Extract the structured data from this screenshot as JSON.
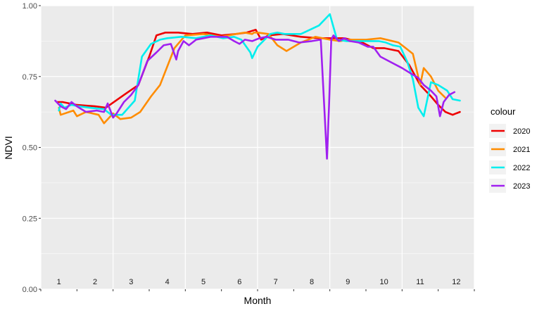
{
  "chart_data": {
    "type": "line",
    "xlabel": "Month",
    "ylabel": "NDVI",
    "ylim": [
      0,
      1
    ],
    "yticks": [
      "0.00",
      "0.25",
      "0.50",
      "0.75",
      "1.00"
    ],
    "xlim": [
      0,
      12
    ],
    "month_labels": [
      "1",
      "2",
      "3",
      "4",
      "5",
      "6",
      "7",
      "8",
      "9",
      "10",
      "11",
      "12"
    ],
    "grid": true,
    "legend": {
      "title": "colour",
      "position": "right"
    },
    "series": [
      {
        "name": "2020",
        "color": "#ee0000",
        "x": [
          0.45,
          0.6,
          1.0,
          1.5,
          1.8,
          2.3,
          2.7,
          3.0,
          3.2,
          3.45,
          3.8,
          4.2,
          4.6,
          5.0,
          5.4,
          5.7,
          5.95,
          6.1,
          6.3,
          6.7,
          7.2,
          7.7,
          8.1,
          8.4,
          8.9,
          9.2,
          9.5,
          9.9,
          10.2,
          10.5,
          10.8,
          11.0,
          11.2,
          11.4,
          11.5,
          11.6
        ],
        "y": [
          0.66,
          0.66,
          0.65,
          0.645,
          0.64,
          0.685,
          0.72,
          0.82,
          0.895,
          0.905,
          0.905,
          0.9,
          0.905,
          0.895,
          0.9,
          0.905,
          0.915,
          0.88,
          0.895,
          0.9,
          0.89,
          0.885,
          0.885,
          0.885,
          0.87,
          0.85,
          0.85,
          0.84,
          0.79,
          0.72,
          0.68,
          0.65,
          0.625,
          0.615,
          0.62,
          0.625
        ]
      },
      {
        "name": "2021",
        "color": "#ff8c00",
        "x": [
          0.5,
          0.55,
          0.9,
          1.0,
          1.25,
          1.6,
          1.75,
          2.0,
          2.2,
          2.5,
          2.75,
          3.05,
          3.3,
          3.7,
          4.0,
          4.5,
          5.0,
          5.4,
          5.65,
          5.85,
          5.9,
          6.0,
          6.3,
          6.55,
          6.8,
          7.2,
          7.6,
          8.0,
          8.3,
          8.5,
          8.7,
          9.0,
          9.4,
          9.9,
          10.1,
          10.3,
          10.5,
          10.6,
          10.8,
          11.0,
          11.2
        ],
        "y": [
          0.64,
          0.615,
          0.63,
          0.61,
          0.625,
          0.615,
          0.585,
          0.62,
          0.6,
          0.605,
          0.625,
          0.68,
          0.72,
          0.85,
          0.895,
          0.9,
          0.89,
          0.9,
          0.905,
          0.9,
          0.905,
          0.905,
          0.9,
          0.86,
          0.84,
          0.87,
          0.89,
          0.88,
          0.875,
          0.88,
          0.88,
          0.88,
          0.885,
          0.87,
          0.85,
          0.83,
          0.72,
          0.78,
          0.75,
          0.7,
          0.675
        ]
      },
      {
        "name": "2022",
        "color": "#00eeee",
        "x": [
          0.5,
          0.55,
          0.65,
          0.85,
          1.05,
          1.35,
          1.75,
          1.95,
          2.25,
          2.6,
          2.8,
          3.05,
          3.3,
          3.5,
          3.9,
          4.3,
          4.7,
          5.05,
          5.35,
          5.55,
          5.8,
          5.85,
          6.0,
          6.35,
          6.55,
          6.75,
          7.2,
          7.7,
          8.0,
          8.2,
          8.45,
          8.9,
          9.35,
          9.55,
          9.75,
          9.95,
          10.15,
          10.3,
          10.45,
          10.6,
          10.8,
          11.0,
          11.25,
          11.4,
          11.6
        ],
        "y": [
          0.63,
          0.655,
          0.64,
          0.65,
          0.645,
          0.64,
          0.635,
          0.615,
          0.615,
          0.665,
          0.82,
          0.865,
          0.88,
          0.885,
          0.89,
          0.885,
          0.895,
          0.885,
          0.89,
          0.88,
          0.835,
          0.815,
          0.855,
          0.9,
          0.905,
          0.9,
          0.9,
          0.93,
          0.97,
          0.88,
          0.875,
          0.875,
          0.875,
          0.87,
          0.86,
          0.855,
          0.8,
          0.74,
          0.64,
          0.61,
          0.73,
          0.72,
          0.7,
          0.67,
          0.665
        ]
      },
      {
        "name": "2023",
        "color": "#a020f0",
        "x": [
          0.4,
          0.55,
          0.7,
          0.85,
          1.0,
          1.25,
          1.55,
          1.75,
          1.85,
          2.0,
          2.1,
          2.3,
          2.5,
          2.7,
          2.95,
          3.2,
          3.4,
          3.6,
          3.75,
          3.8,
          3.95,
          4.1,
          4.3,
          4.5,
          4.7,
          4.95,
          5.15,
          5.35,
          5.5,
          5.65,
          5.85,
          6.05,
          6.25,
          6.5,
          6.85,
          7.15,
          7.5,
          7.75,
          7.92,
          7.98,
          8.04,
          8.1,
          8.25,
          8.4,
          8.55,
          8.8,
          9.05,
          9.2,
          9.4,
          9.7,
          10.0,
          10.25,
          10.45,
          10.6,
          10.8,
          10.95,
          11.05,
          11.15,
          11.3,
          11.45
        ],
        "y": [
          0.665,
          0.645,
          0.635,
          0.66,
          0.645,
          0.625,
          0.63,
          0.625,
          0.655,
          0.605,
          0.62,
          0.66,
          0.685,
          0.72,
          0.805,
          0.835,
          0.86,
          0.865,
          0.81,
          0.84,
          0.875,
          0.86,
          0.88,
          0.885,
          0.89,
          0.89,
          0.89,
          0.875,
          0.865,
          0.88,
          0.875,
          0.885,
          0.89,
          0.88,
          0.88,
          0.87,
          0.875,
          0.88,
          0.46,
          0.65,
          0.88,
          0.895,
          0.875,
          0.885,
          0.875,
          0.87,
          0.855,
          0.855,
          0.82,
          0.8,
          0.78,
          0.76,
          0.745,
          0.72,
          0.7,
          0.68,
          0.61,
          0.66,
          0.685,
          0.695
        ]
      }
    ]
  }
}
